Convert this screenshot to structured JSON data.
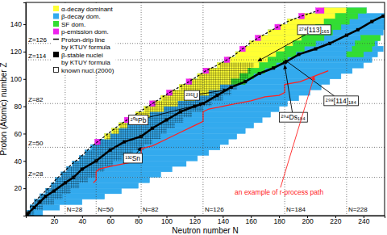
{
  "chart_data": {
    "type": "scatter",
    "xlabel": "Neutron number N",
    "ylabel": "Proton (Atomic) number Z",
    "xlim": [
      0,
      255
    ],
    "ylim": [
      0,
      156
    ],
    "xticks": [
      20,
      40,
      60,
      80,
      100,
      120,
      140,
      160,
      180,
      200,
      220,
      240
    ],
    "yticks": [
      20,
      40,
      60,
      80,
      100,
      120,
      140
    ],
    "legend": "top-left",
    "series": [
      {
        "name": "α-decay dominant",
        "color": "#ffff33",
        "type": "band",
        "rows": [
          [
            58,
            56,
            60
          ],
          [
            62,
            61,
            66
          ],
          [
            66,
            66,
            72
          ],
          [
            70,
            72,
            80
          ],
          [
            74,
            78,
            88
          ],
          [
            78,
            84,
            98
          ],
          [
            82,
            90,
            108
          ],
          [
            86,
            96,
            120
          ],
          [
            90,
            102,
            130
          ],
          [
            94,
            109,
            138
          ],
          [
            98,
            116,
            146
          ],
          [
            102,
            122,
            152
          ],
          [
            106,
            128,
            158
          ],
          [
            110,
            136,
            166
          ],
          [
            114,
            143,
            172
          ],
          [
            118,
            149,
            178
          ],
          [
            122,
            154,
            184
          ],
          [
            126,
            159,
            190
          ],
          [
            130,
            165,
            196
          ],
          [
            134,
            172,
            200
          ],
          [
            138,
            179,
            206
          ],
          [
            142,
            186,
            212
          ],
          [
            146,
            196,
            220
          ],
          [
            150,
            208,
            228
          ]
        ]
      },
      {
        "name": "β-decay dom.",
        "color": "#33aaee",
        "type": "band",
        "rows": [
          [
            2,
            1,
            12
          ],
          [
            6,
            3,
            24
          ],
          [
            10,
            6,
            40
          ],
          [
            14,
            10,
            56
          ],
          [
            18,
            14,
            68
          ],
          [
            22,
            18,
            80
          ],
          [
            26,
            21,
            88
          ],
          [
            30,
            25,
            96
          ],
          [
            34,
            29,
            104
          ],
          [
            38,
            33,
            114
          ],
          [
            42,
            38,
            122
          ],
          [
            46,
            42,
            130
          ],
          [
            50,
            46,
            138
          ],
          [
            54,
            51,
            144
          ],
          [
            58,
            56,
            150
          ],
          [
            62,
            61,
            156
          ],
          [
            66,
            66,
            162
          ],
          [
            70,
            72,
            168
          ],
          [
            74,
            78,
            174
          ],
          [
            78,
            84,
            180
          ],
          [
            82,
            90,
            186
          ],
          [
            86,
            96,
            194
          ],
          [
            90,
            102,
            202
          ],
          [
            94,
            109,
            210
          ],
          [
            98,
            116,
            216
          ],
          [
            102,
            122,
            224
          ],
          [
            106,
            128,
            232
          ],
          [
            110,
            136,
            240
          ],
          [
            114,
            143,
            246
          ],
          [
            118,
            149,
            250
          ],
          [
            122,
            154,
            254
          ],
          [
            126,
            159,
            250
          ],
          [
            130,
            165,
            252
          ],
          [
            134,
            172,
            254
          ],
          [
            138,
            179,
            255
          ],
          [
            142,
            186,
            255
          ],
          [
            146,
            196,
            255
          ],
          [
            150,
            212,
            242
          ]
        ]
      },
      {
        "name": "SF dom.",
        "color": "#33dd33",
        "type": "band",
        "rows": [
          [
            98,
            146,
            156
          ],
          [
            102,
            152,
            162
          ],
          [
            106,
            158,
            170
          ],
          [
            110,
            166,
            178
          ],
          [
            114,
            172,
            186
          ],
          [
            118,
            178,
            192
          ],
          [
            122,
            184,
            198
          ],
          [
            126,
            190,
            206
          ],
          [
            130,
            196,
            212
          ],
          [
            134,
            200,
            218
          ],
          [
            138,
            206,
            224
          ],
          [
            142,
            212,
            230
          ],
          [
            146,
            220,
            236
          ],
          [
            150,
            228,
            242
          ],
          [
            118,
            228,
            240
          ],
          [
            122,
            232,
            246
          ],
          [
            126,
            234,
            248
          ],
          [
            130,
            238,
            252
          ]
        ]
      },
      {
        "name": "p-emission dom.",
        "color": "#ee22ee",
        "type": "band",
        "rows": [
          [
            54,
            49,
            53
          ],
          [
            70,
            70,
            74
          ],
          [
            82,
            88,
            92
          ],
          [
            90,
            100,
            104
          ],
          [
            98,
            114,
            118
          ],
          [
            106,
            126,
            130
          ],
          [
            114,
            141,
            145
          ],
          [
            122,
            152,
            156
          ],
          [
            130,
            163,
            167
          ],
          [
            138,
            177,
            181
          ],
          [
            146,
            194,
            198
          ],
          [
            150,
            206,
            212
          ]
        ]
      },
      {
        "name": "Proton-drip line by KTUY formula",
        "color": "#000000",
        "type": "line",
        "line_style": "dashed",
        "x": [
          3,
          6,
          10,
          14,
          18,
          21,
          25,
          29,
          33,
          38,
          42,
          46,
          51,
          56,
          61,
          66,
          72,
          78,
          84,
          90,
          96,
          102,
          109,
          116,
          122,
          128,
          136,
          143,
          149,
          154,
          159,
          165,
          172,
          179,
          186,
          196,
          208
        ],
        "y": [
          6,
          10,
          14,
          18,
          22,
          26,
          30,
          34,
          38,
          42,
          46,
          50,
          54,
          58,
          62,
          66,
          70,
          74,
          78,
          82,
          86,
          90,
          94,
          98,
          102,
          106,
          110,
          114,
          118,
          122,
          126,
          130,
          134,
          138,
          142,
          146,
          150
        ]
      },
      {
        "name": "β-stable nuclei by KTUY formula",
        "color": "#000000",
        "type": "line",
        "marker": "square",
        "x": [
          1,
          2,
          6,
          10,
          14,
          20,
          28,
          34,
          40,
          50,
          60,
          70,
          82,
          90,
          100,
          110,
          120,
          126,
          136,
          146,
          156,
          166,
          176,
          184,
          194,
          206,
          216,
          228,
          236,
          246,
          254
        ],
        "y": [
          1,
          2,
          6,
          10,
          14,
          18,
          24,
          28,
          34,
          40,
          48,
          54,
          58,
          64,
          70,
          76,
          80,
          82,
          88,
          94,
          98,
          104,
          108,
          112,
          118,
          122,
          126,
          132,
          136,
          142,
          146
        ]
      },
      {
        "name": "known nucl.(2000)",
        "color": "#000000",
        "type": "band",
        "marker": "open_square",
        "rows": [
          [
            2,
            1,
            6
          ],
          [
            6,
            3,
            12
          ],
          [
            10,
            6,
            20
          ],
          [
            14,
            10,
            26
          ],
          [
            18,
            14,
            32
          ],
          [
            22,
            18,
            38
          ],
          [
            26,
            21,
            44
          ],
          [
            30,
            25,
            50
          ],
          [
            34,
            29,
            56
          ],
          [
            38,
            33,
            62
          ],
          [
            42,
            38,
            68
          ],
          [
            46,
            42,
            76
          ],
          [
            50,
            47,
            84
          ],
          [
            54,
            52,
            90
          ],
          [
            58,
            57,
            96
          ],
          [
            62,
            62,
            100
          ],
          [
            66,
            67,
            106
          ],
          [
            70,
            73,
            112
          ],
          [
            74,
            79,
            118
          ],
          [
            78,
            85,
            126
          ],
          [
            82,
            91,
            132
          ],
          [
            86,
            97,
            140
          ],
          [
            90,
            103,
            146
          ],
          [
            94,
            110,
            150
          ],
          [
            98,
            117,
            156
          ],
          [
            102,
            123,
            158
          ],
          [
            106,
            130,
            160
          ],
          [
            110,
            138,
            162
          ]
        ]
      },
      {
        "color": "#ff2222",
        "type": "line",
        "line_style": "solid",
        "x": [
          48,
          50,
          50,
          52,
          60,
          70,
          80,
          82,
          82,
          90,
          100,
          110,
          120,
          126,
          126,
          130,
          140,
          150,
          160,
          170,
          180,
          184,
          184,
          195,
          205,
          215
        ],
        "y": [
          24,
          26,
          32,
          34,
          36,
          38,
          40,
          42,
          49,
          51,
          56,
          61,
          66,
          69,
          76,
          78,
          80,
          82,
          84,
          87,
          88,
          90,
          96,
          98,
          102,
          106
        ]
      }
    ],
    "z_lines": [
      {
        "value": 28,
        "label": "Z=28"
      },
      {
        "value": 50,
        "label": "Z=50"
      },
      {
        "value": 82,
        "label": "Z=82"
      },
      {
        "value": 114,
        "label": "Z=114"
      },
      {
        "value": 126,
        "label": "Z=126"
      }
    ],
    "n_lines": [
      {
        "value": 28,
        "label": "N=28"
      },
      {
        "value": 50,
        "label": "N=50"
      },
      {
        "value": 82,
        "label": "N=82"
      },
      {
        "value": 126,
        "label": "N=126"
      },
      {
        "value": 184,
        "label": "N=184"
      },
      {
        "value": 228,
        "label": "N=228"
      }
    ],
    "annotations": [
      {
        "text": "²⁷⁸[113]₁₆₅",
        "at": [
          205,
          136
        ],
        "target": [
          165,
          113
        ]
      },
      {
        "text": "²⁹⁸[114]₁₈₄",
        "at": [
          224,
          84
        ],
        "target": [
          184,
          114
        ]
      },
      {
        "text": "²⁹⁴Ds₁₈₄",
        "at": [
          190,
          72
        ],
        "target": [
          184,
          110
        ]
      },
      {
        "text": "²⁰⁸Pb",
        "at": [
          80,
          70
        ],
        "target": [
          126,
          82
        ]
      },
      {
        "text": "²³⁵U",
        "at": [
          118,
          88
        ],
        "target": [
          143,
          92
        ]
      },
      {
        "text": "¹³²Sn",
        "at": [
          76,
          42
        ],
        "target": [
          82,
          50
        ]
      },
      {
        "text": "an example of r-process path",
        "at": [
          180,
          17
        ],
        "target": [
          205,
          102
        ],
        "color": "#ff2222"
      }
    ]
  }
}
